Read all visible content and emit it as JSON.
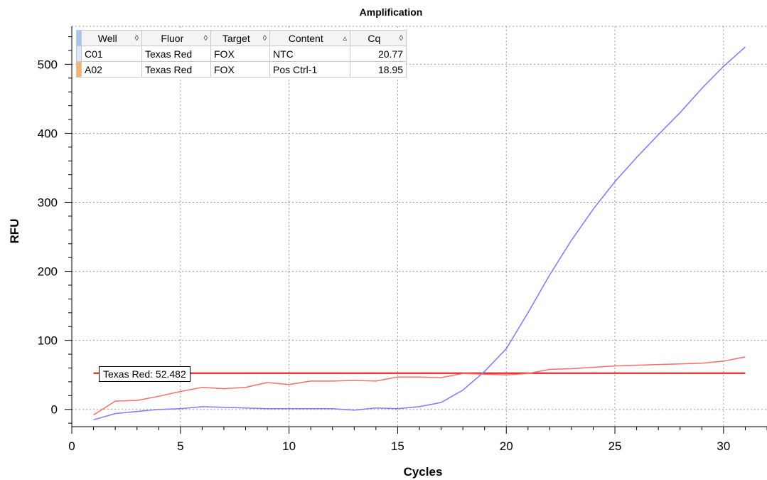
{
  "chart_data": {
    "type": "line",
    "title": "Amplification",
    "xlabel": "Cycles",
    "ylabel": "RFU",
    "xlim": [
      0,
      32
    ],
    "ylim": [
      -25,
      555
    ],
    "xticks": [
      0,
      5,
      10,
      15,
      20,
      25,
      30
    ],
    "yticks": [
      0,
      100,
      200,
      300,
      400,
      500
    ],
    "grid": true,
    "series": [
      {
        "color": "#7b7bff",
        "x": [
          1,
          2,
          3,
          4,
          5,
          6,
          7,
          8,
          9,
          10,
          11,
          12,
          13,
          14,
          15,
          16,
          17,
          18,
          19,
          20,
          21,
          22,
          23,
          24,
          25,
          26,
          27,
          28,
          29,
          30,
          31
        ],
        "y": [
          -15,
          -6,
          -3,
          0,
          1,
          4,
          3,
          2,
          1,
          1,
          1,
          1,
          -1,
          2,
          1,
          4,
          10,
          28,
          55,
          88,
          140,
          195,
          245,
          290,
          330,
          365,
          398,
          430,
          465,
          497,
          525
        ]
      },
      {
        "color": "#ff6b6b",
        "x": [
          1,
          2,
          3,
          4,
          5,
          6,
          7,
          8,
          9,
          10,
          11,
          12,
          13,
          14,
          15,
          16,
          17,
          18,
          19,
          20,
          21,
          22,
          23,
          24,
          25,
          26,
          27,
          28,
          29,
          30,
          31
        ],
        "y": [
          -8,
          12,
          13,
          19,
          26,
          32,
          30,
          32,
          39,
          36,
          41,
          41,
          42,
          41,
          47,
          47,
          46,
          52,
          51,
          50,
          52,
          58,
          59,
          61,
          63,
          64,
          65,
          66,
          67,
          70,
          76
        ]
      }
    ],
    "threshold": {
      "value": 52.482,
      "label": "Texas Red: 52.482",
      "color": "#e01010"
    }
  },
  "well_table": {
    "columns": [
      {
        "label": "Well",
        "sort_icon": "◊"
      },
      {
        "label": "Fluor",
        "sort_icon": "◊"
      },
      {
        "label": "Target",
        "sort_icon": "◊"
      },
      {
        "label": "Content",
        "sort_icon": "▵"
      },
      {
        "label": "Cq",
        "sort_icon": "◊"
      }
    ],
    "rows": [
      {
        "well": "C01",
        "fluor": "Texas Red",
        "target": "FOX",
        "content": "NTC",
        "cq": "20.77",
        "marker_color": "#dce6f7"
      },
      {
        "well": "A02",
        "fluor": "Texas Red",
        "target": "FOX",
        "content": "Pos Ctrl-1",
        "cq": "18.95",
        "marker_color": "#f2b36b"
      }
    ]
  }
}
